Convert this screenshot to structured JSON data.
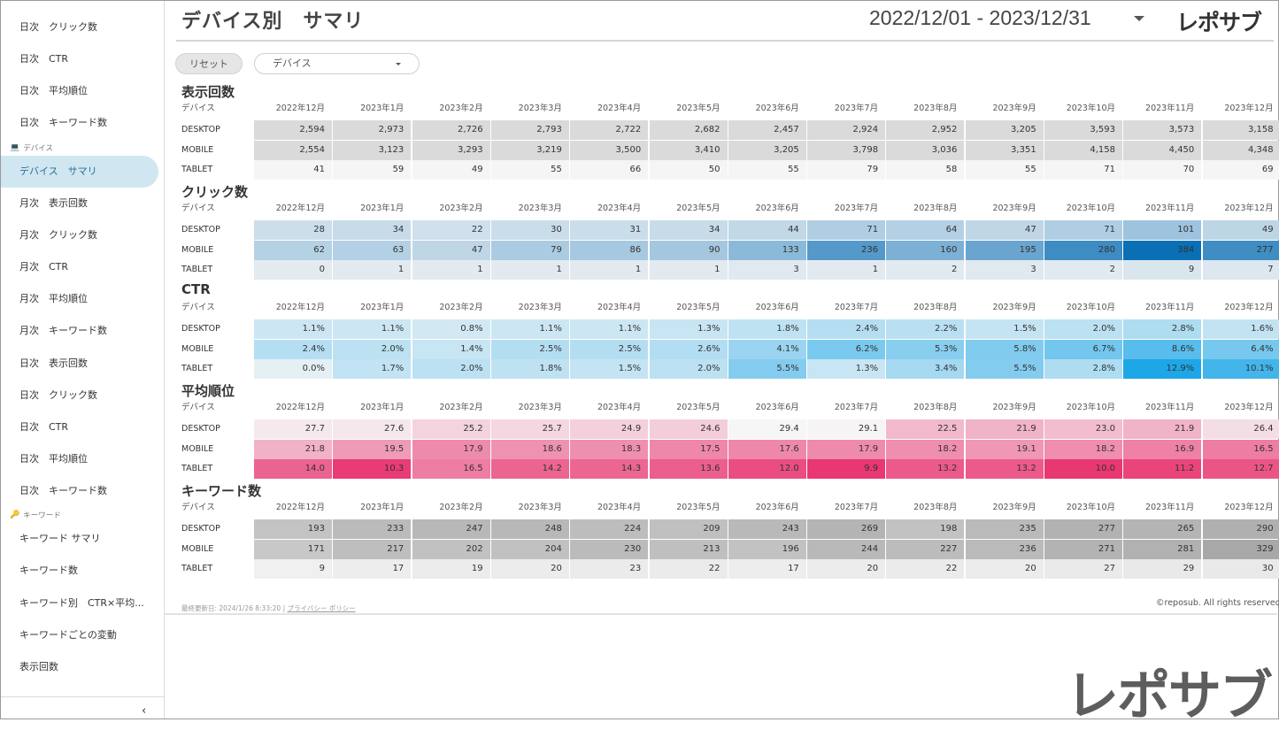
{
  "sidebar": {
    "items_top": [
      {
        "label": "日次　クリック数"
      },
      {
        "label": "日次　CTR"
      },
      {
        "label": "日次　平均順位"
      },
      {
        "label": "日次　キーワード数"
      }
    ],
    "section_device": {
      "icon": "monitor-icon",
      "label": "デバイス"
    },
    "device_items": [
      {
        "label": "デバイス　サマリ",
        "active": true
      },
      {
        "label": "月次　表示回数"
      },
      {
        "label": "月次　クリック数"
      },
      {
        "label": "月次　CTR"
      },
      {
        "label": "月次　平均順位"
      },
      {
        "label": "月次　キーワード数"
      },
      {
        "label": "日次　表示回数"
      },
      {
        "label": "日次　クリック数"
      },
      {
        "label": "日次　CTR"
      },
      {
        "label": "日次　平均順位"
      },
      {
        "label": "日次　キーワード数"
      }
    ],
    "section_keyword": {
      "icon": "key-icon",
      "label": "キーワード"
    },
    "keyword_items": [
      {
        "label": "キーワード サマリ"
      },
      {
        "label": "キーワード数"
      },
      {
        "label": "キーワード別　CTR×平均..."
      },
      {
        "label": "キーワードごとの変動"
      },
      {
        "label": "表示回数"
      }
    ],
    "collapse_icon": "chevron-left-icon",
    "collapse_glyph": "‹"
  },
  "header": {
    "title": "デバイス別　サマリ",
    "date_range": "2022/12/01 - 2023/12/31",
    "logo": "レポサブ"
  },
  "controls": {
    "reset_label": "リセット",
    "device_select_value": "デバイス"
  },
  "months": [
    "2022年12月",
    "2023年1月",
    "2023年2月",
    "2023年3月",
    "2023年4月",
    "2023年5月",
    "2023年6月",
    "2023年7月",
    "2023年8月",
    "2023年9月",
    "2023年10月",
    "2023年11月",
    "2023年12月"
  ],
  "tables": [
    {
      "title": "表示回数",
      "col_header": "デバイス",
      "color": "#b3b3b3",
      "mode": "gray-fixed",
      "rows": [
        {
          "device": "DESKTOP",
          "values": [
            "2,594",
            "2,973",
            "2,726",
            "2,793",
            "2,722",
            "2,682",
            "2,457",
            "2,924",
            "2,952",
            "3,205",
            "3,593",
            "3,573",
            "3,158"
          ]
        },
        {
          "device": "MOBILE",
          "values": [
            "2,554",
            "3,123",
            "3,293",
            "3,219",
            "3,500",
            "3,410",
            "3,205",
            "3,798",
            "3,036",
            "3,351",
            "4,158",
            "4,450",
            "4,348"
          ]
        },
        {
          "device": "TABLET",
          "values": [
            "41",
            "59",
            "49",
            "55",
            "66",
            "50",
            "55",
            "79",
            "58",
            "55",
            "71",
            "70",
            "69"
          ]
        }
      ]
    },
    {
      "title": "クリック数",
      "col_header": "デバイス",
      "color": "#0a6fb5",
      "mode": "scale",
      "rows": [
        {
          "device": "DESKTOP",
          "values": [
            "28",
            "34",
            "22",
            "30",
            "31",
            "34",
            "44",
            "71",
            "64",
            "47",
            "71",
            "101",
            "49"
          ]
        },
        {
          "device": "MOBILE",
          "values": [
            "62",
            "63",
            "47",
            "79",
            "86",
            "90",
            "133",
            "236",
            "160",
            "195",
            "280",
            "384",
            "277"
          ]
        },
        {
          "device": "TABLET",
          "values": [
            "0",
            "1",
            "1",
            "1",
            "1",
            "1",
            "3",
            "1",
            "2",
            "3",
            "2",
            "9",
            "7"
          ]
        }
      ]
    },
    {
      "title": "CTR",
      "col_header": "デバイス",
      "color": "#1ea7e8",
      "mode": "scale",
      "rows": [
        {
          "device": "DESKTOP",
          "values": [
            "1.1%",
            "1.1%",
            "0.8%",
            "1.1%",
            "1.1%",
            "1.3%",
            "1.8%",
            "2.4%",
            "2.2%",
            "1.5%",
            "2.0%",
            "2.8%",
            "1.6%"
          ]
        },
        {
          "device": "MOBILE",
          "values": [
            "2.4%",
            "2.0%",
            "1.4%",
            "2.5%",
            "2.5%",
            "2.6%",
            "4.1%",
            "6.2%",
            "5.3%",
            "5.8%",
            "6.7%",
            "8.6%",
            "6.4%"
          ]
        },
        {
          "device": "TABLET",
          "values": [
            "0.0%",
            "1.7%",
            "2.0%",
            "1.8%",
            "1.5%",
            "2.0%",
            "5.5%",
            "1.3%",
            "3.4%",
            "5.5%",
            "2.8%",
            "12.9%",
            "10.1%"
          ]
        }
      ]
    },
    {
      "title": "平均順位",
      "col_header": "デバイス",
      "color": "#e8336f",
      "mode": "scale-inverse",
      "rows": [
        {
          "device": "DESKTOP",
          "values": [
            "27.7",
            "27.6",
            "25.2",
            "25.7",
            "24.9",
            "24.6",
            "29.4",
            "29.1",
            "22.5",
            "21.9",
            "23.0",
            "21.9",
            "26.4"
          ]
        },
        {
          "device": "MOBILE",
          "values": [
            "21.8",
            "19.5",
            "17.9",
            "18.6",
            "18.3",
            "17.5",
            "17.6",
            "17.9",
            "18.2",
            "19.1",
            "18.2",
            "16.9",
            "16.5"
          ]
        },
        {
          "device": "TABLET",
          "values": [
            "14.0",
            "10.3",
            "16.5",
            "14.2",
            "14.3",
            "13.6",
            "12.0",
            "9.9",
            "13.2",
            "13.2",
            "10.0",
            "11.2",
            "12.7"
          ]
        }
      ]
    },
    {
      "title": "キーワード数",
      "col_header": "デバイス",
      "color": "#a8a8a8",
      "mode": "scale",
      "rows": [
        {
          "device": "DESKTOP",
          "values": [
            "193",
            "233",
            "247",
            "248",
            "224",
            "209",
            "243",
            "269",
            "198",
            "235",
            "277",
            "265",
            "290"
          ]
        },
        {
          "device": "MOBILE",
          "values": [
            "171",
            "217",
            "202",
            "204",
            "230",
            "213",
            "196",
            "244",
            "227",
            "236",
            "271",
            "281",
            "329"
          ]
        },
        {
          "device": "TABLET",
          "values": [
            "9",
            "17",
            "19",
            "20",
            "23",
            "22",
            "17",
            "20",
            "22",
            "20",
            "27",
            "29",
            "30"
          ]
        }
      ]
    }
  ],
  "footer": {
    "updated": "最終更新日: 2024/1/26 8:33:20",
    "separator": "|",
    "privacy": "プライバシー ポリシー",
    "copyright": "©reposub. All rights reserved."
  },
  "watermark": "レポサブ"
}
